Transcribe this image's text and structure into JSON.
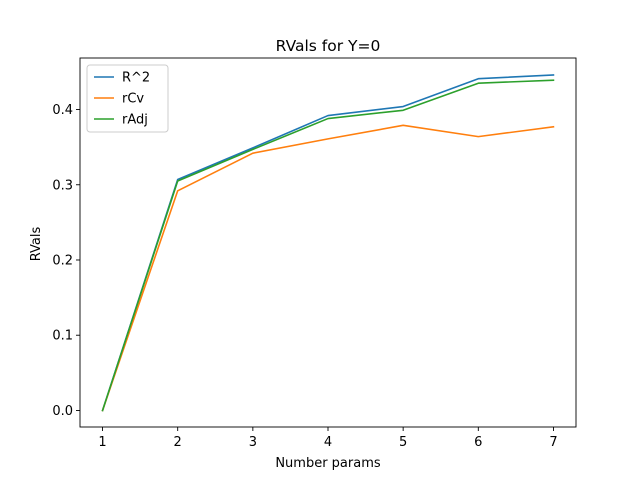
{
  "chart_data": {
    "type": "line",
    "title": "RVals for Y=0",
    "xlabel": "Number params",
    "ylabel": "RVals",
    "x": [
      1,
      2,
      3,
      4,
      5,
      6,
      7
    ],
    "xlim": [
      0.7,
      7.3
    ],
    "ylim": [
      -0.022,
      0.4685
    ],
    "xticks": [
      1,
      2,
      3,
      4,
      5,
      6,
      7
    ],
    "yticks": [
      0.0,
      0.1,
      0.2,
      0.3,
      0.4
    ],
    "ytick_labels": [
      "0.0",
      "0.1",
      "0.2",
      "0.3",
      "0.4"
    ],
    "grid": false,
    "legend_position": "upper-left",
    "series": [
      {
        "name": "R^2",
        "color": "#1f77b4",
        "values": [
          0.0,
          0.307,
          0.349,
          0.392,
          0.404,
          0.441,
          0.446
        ]
      },
      {
        "name": "rCv",
        "color": "#ff7f0e",
        "values": [
          0.0,
          0.292,
          0.342,
          0.361,
          0.379,
          0.364,
          0.377
        ]
      },
      {
        "name": "rAdj",
        "color": "#2ca02c",
        "values": [
          0.0,
          0.305,
          0.347,
          0.388,
          0.399,
          0.435,
          0.439
        ]
      }
    ]
  }
}
